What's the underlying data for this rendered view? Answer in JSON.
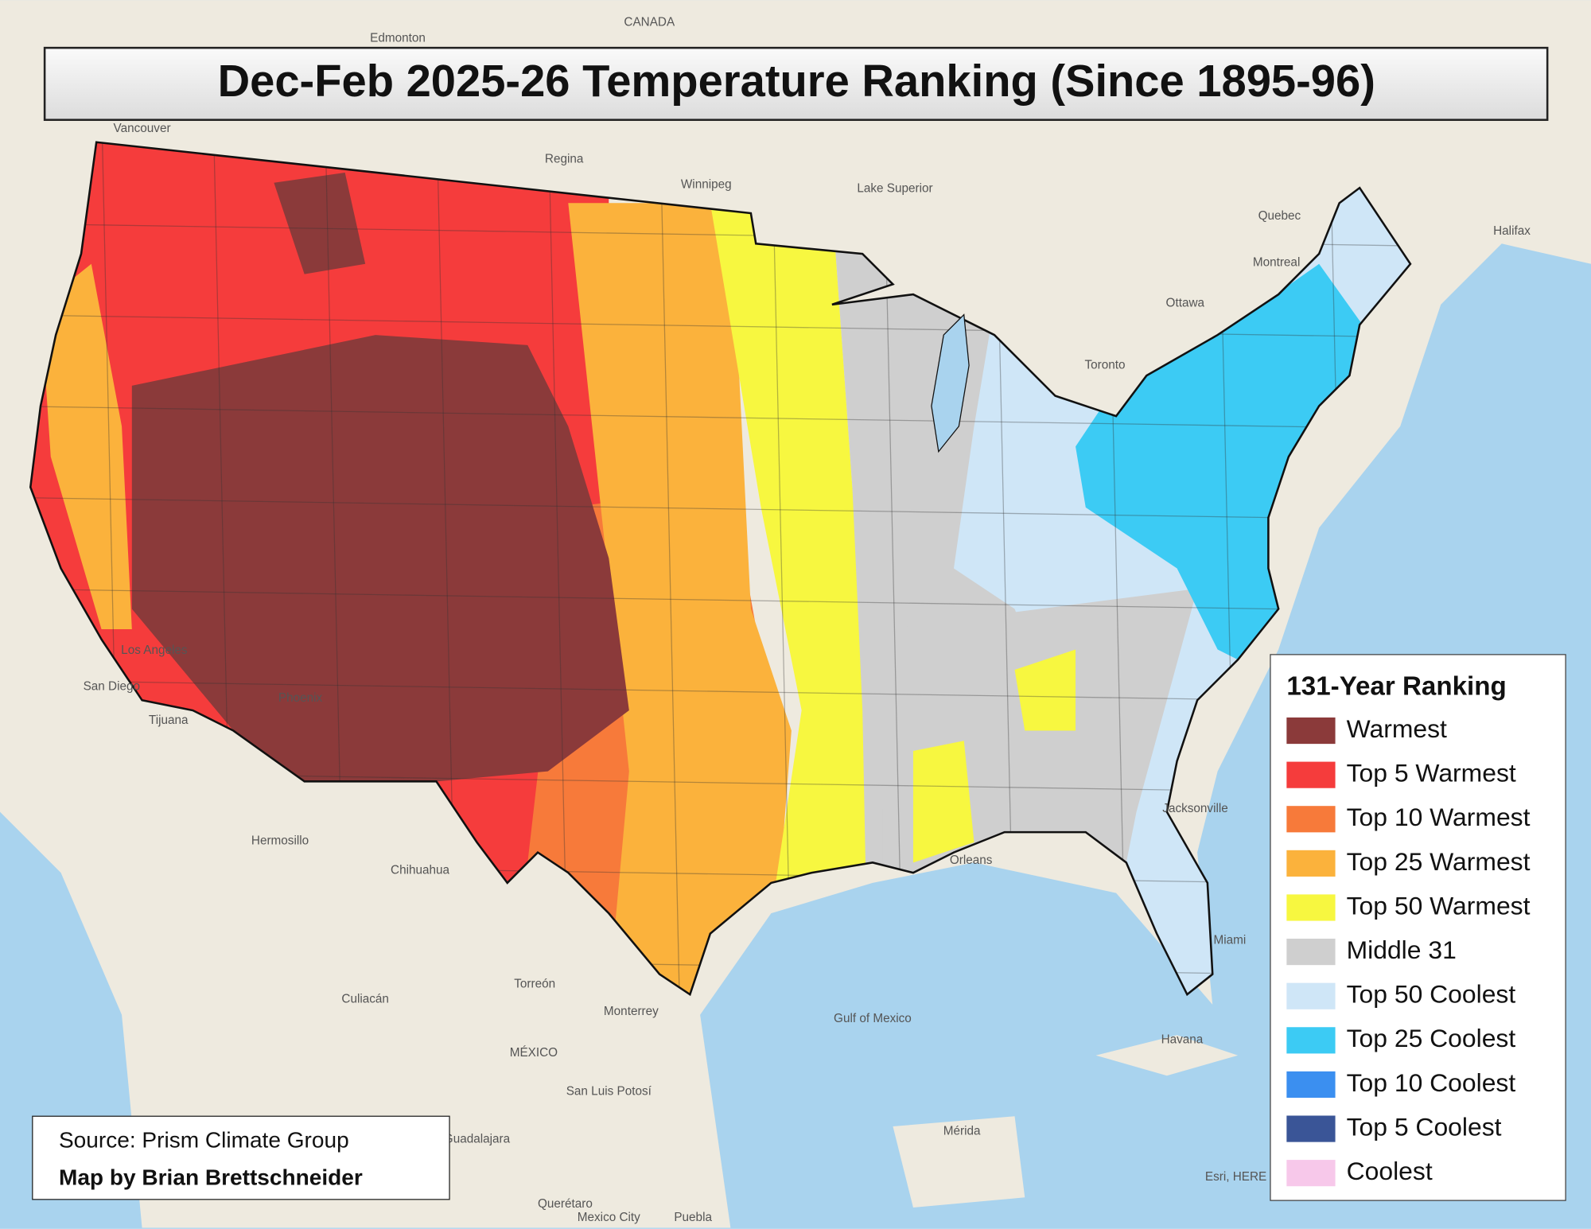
{
  "map": {
    "title": "Dec-Feb 2025-26 Temperature Ranking (Since 1895-96)",
    "legend": {
      "title": "131-Year Ranking",
      "items": [
        {
          "label": "Warmest",
          "color": "#8b3a3a"
        },
        {
          "label": "Top 5 Warmest",
          "color": "#f53c3c"
        },
        {
          "label": "Top 10 Warmest",
          "color": "#f77a3a"
        },
        {
          "label": "Top 25 Warmest",
          "color": "#fbb23c"
        },
        {
          "label": "Top 50 Warmest",
          "color": "#f7f740"
        },
        {
          "label": "Middle 31",
          "color": "#cfcfcf"
        },
        {
          "label": "Top 50 Coolest",
          "color": "#cfe6f7"
        },
        {
          "label": "Top 25 Coolest",
          "color": "#3ccbf4"
        },
        {
          "label": "Top 10 Coolest",
          "color": "#3b8ff0"
        },
        {
          "label": "Top 5 Coolest",
          "color": "#3a5597"
        },
        {
          "label": "Coolest",
          "color": "#f7c8ea"
        }
      ]
    },
    "credits": {
      "source": "Source: Prism Climate Group",
      "author": "Map by Brian Brettschneider"
    },
    "places": [
      "CANADA",
      "Edmonton",
      "Regina",
      "Winnipeg",
      "Lake Superior",
      "Ottawa",
      "Montreal",
      "Quebec",
      "Halifax",
      "Toronto",
      "Vancouver",
      "Los Angeles",
      "San Diego",
      "Tijuana",
      "Phoenix",
      "Hermosillo",
      "Chihuahua",
      "Torreón",
      "Culiacán",
      "Monterrey",
      "MÉXICO",
      "San Luis Potosí",
      "Guadalajara",
      "Querétaro",
      "Mexico City",
      "Puebla",
      "Mérida",
      "Havana",
      "Gulf of Mexico",
      "Miami",
      "Jacksonville",
      "Orleans",
      "Esri, HERE"
    ]
  }
}
